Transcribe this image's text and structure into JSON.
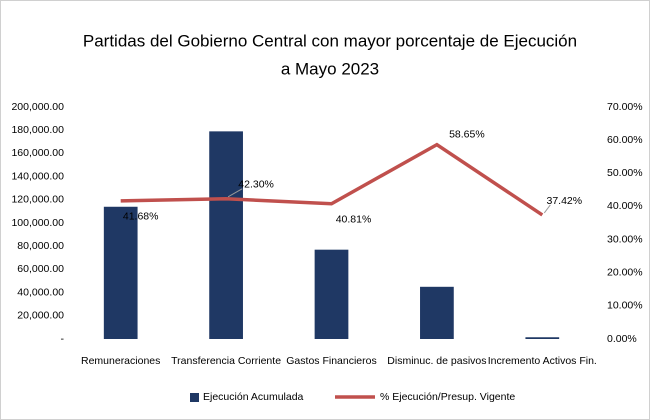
{
  "chart_data": {
    "type": "bar_line",
    "title": [
      "Partidas del Gobierno Central con mayor porcentaje de Ejecución",
      "a Mayo 2023"
    ],
    "categories": [
      "Remuneraciones",
      "Transferencia Corriente",
      "Gastos Financieros",
      "Disminuc. de pasivos",
      "Incremento Activos Fin."
    ],
    "series": [
      {
        "name": "Ejecución Acumulada",
        "color": "#1f3864",
        "type": "bar",
        "values": [
          114000,
          179000,
          77000,
          45000,
          1500
        ]
      },
      {
        "name": "% Ejecución/Presup. Vigente",
        "color": "#c0504d",
        "type": "line",
        "axis": "y2",
        "values": [
          41.68,
          42.3,
          40.81,
          58.65,
          37.42
        ],
        "value_labels": [
          "41.68%",
          "42.30%",
          "40.81%",
          "58.65%",
          "37.42%"
        ]
      }
    ],
    "ylim": [
      0,
      200000
    ],
    "yticks": [
      {
        "value": 0,
        "label": "-"
      },
      {
        "value": 20000,
        "label": "20,000.00"
      },
      {
        "value": 40000,
        "label": "40,000.00"
      },
      {
        "value": 60000,
        "label": "60,000.00"
      },
      {
        "value": 80000,
        "label": "80,000.00"
      },
      {
        "value": 100000,
        "label": "100,000.00"
      },
      {
        "value": 120000,
        "label": "120,000.00"
      },
      {
        "value": 140000,
        "label": "140,000.00"
      },
      {
        "value": 160000,
        "label": "160,000.00"
      },
      {
        "value": 180000,
        "label": "180,000.00"
      },
      {
        "value": 200000,
        "label": "200,000.00"
      }
    ],
    "y2lim": [
      0,
      70
    ],
    "y2ticks": [
      {
        "value": 0,
        "label": "0.00%"
      },
      {
        "value": 10,
        "label": "10.00%"
      },
      {
        "value": 20,
        "label": "20.00%"
      },
      {
        "value": 30,
        "label": "30.00%"
      },
      {
        "value": 40,
        "label": "40.00%"
      },
      {
        "value": 50,
        "label": "50.00%"
      },
      {
        "value": 60,
        "label": "60.00%"
      },
      {
        "value": 70,
        "label": "70.00%"
      }
    ],
    "grid": false,
    "legend": "bottom"
  }
}
